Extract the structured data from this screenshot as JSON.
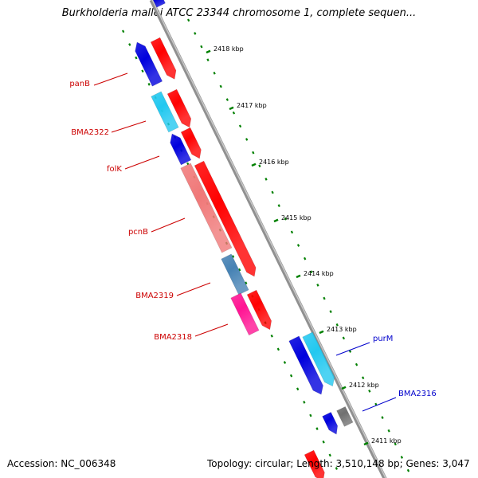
{
  "title": "Burkholderia mallei ATCC 23344 chromosome 1, complete sequen...",
  "footer": {
    "accession": "Accession: NC_006348",
    "stats": "Topology: circular; Length: 3,510,148 bp; Genes: 3,047"
  },
  "colors": {
    "forward_strand": "#ff0000",
    "reverse_gene_blue": "#0000dd",
    "reverse_gene_cyan": "#22c8f0",
    "reverse_gene_pink": "#f07878",
    "reverse_gene_steel": "#4682b4",
    "reverse_gene_magenta": "#ff1493",
    "gray_gene": "#707070",
    "backbone": "#909090",
    "tick": "#008000",
    "label_red": "#cc0000",
    "label_blue": "#0000cc"
  },
  "ticks": [
    {
      "label": "2418 kbp"
    },
    {
      "label": "2417 kbp"
    },
    {
      "label": "2416 kbp"
    },
    {
      "label": "2415 kbp"
    },
    {
      "label": "2414 kbp"
    },
    {
      "label": "2413 kbp"
    },
    {
      "label": "2412 kbp"
    },
    {
      "label": "2411 kbp"
    }
  ],
  "gene_labels": [
    {
      "name": "panB",
      "color": "#cc0000"
    },
    {
      "name": "BMA2322",
      "color": "#cc0000"
    },
    {
      "name": "folK",
      "color": "#cc0000"
    },
    {
      "name": "pcnB",
      "color": "#cc0000"
    },
    {
      "name": "BMA2319",
      "color": "#cc0000"
    },
    {
      "name": "BMA2318",
      "color": "#cc0000"
    },
    {
      "name": "purM",
      "color": "#0000cc"
    },
    {
      "name": "BMA2316",
      "color": "#0000cc"
    }
  ]
}
